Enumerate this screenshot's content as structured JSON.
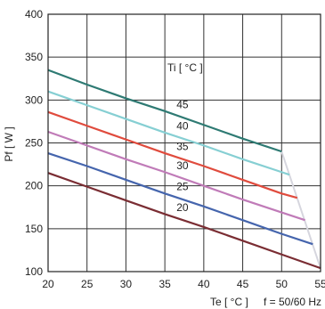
{
  "chart_data": {
    "type": "line",
    "xlabel": "Te [ °C ]",
    "ylabel": "Pf [ W ]",
    "xlim": [
      20,
      55
    ],
    "ylim": [
      100,
      400
    ],
    "x_ticks": [
      "20",
      "25",
      "30",
      "35",
      "40",
      "45",
      "50",
      "55"
    ],
    "y_ticks": [
      "100",
      "150",
      "200",
      "250",
      "300",
      "350",
      "400"
    ],
    "grid": true,
    "frequency_note": "f = 50/60 Hz",
    "series_title": "Ti [ °C ]",
    "series": [
      {
        "name": "45",
        "color": "#2e7a73",
        "x": [
          20,
          25,
          30,
          35,
          40,
          45,
          50
        ],
        "y": [
          335,
          318,
          302,
          287,
          271,
          255,
          240
        ]
      },
      {
        "name": "40",
        "color": "#86cfd3",
        "x": [
          20,
          25,
          30,
          35,
          40,
          45,
          50,
          51
        ],
        "y": [
          310,
          294,
          278,
          262,
          247,
          231,
          216,
          213
        ]
      },
      {
        "name": "35",
        "color": "#e04b3d",
        "x": [
          20,
          25,
          30,
          35,
          40,
          45,
          50,
          52
        ],
        "y": [
          286,
          270,
          254,
          238,
          223,
          207,
          191,
          186
        ]
      },
      {
        "name": "30",
        "color": "#c07bb8",
        "x": [
          20,
          25,
          30,
          35,
          40,
          45,
          50,
          53
        ],
        "y": [
          263,
          247,
          231,
          216,
          200,
          184,
          169,
          160
        ]
      },
      {
        "name": "25",
        "color": "#4565ad",
        "x": [
          20,
          25,
          30,
          35,
          40,
          45,
          50,
          54
        ],
        "y": [
          238,
          223,
          207,
          191,
          176,
          160,
          144,
          132
        ]
      },
      {
        "name": "20",
        "color": "#7a2d33",
        "x": [
          20,
          25,
          30,
          35,
          40,
          45,
          50,
          55
        ],
        "y": [
          215,
          199,
          183,
          167,
          152,
          136,
          120,
          104
        ]
      }
    ],
    "envelope": {
      "color": "#d6d6de",
      "x": [
        50,
        55
      ],
      "y": [
        240,
        104
      ]
    }
  }
}
